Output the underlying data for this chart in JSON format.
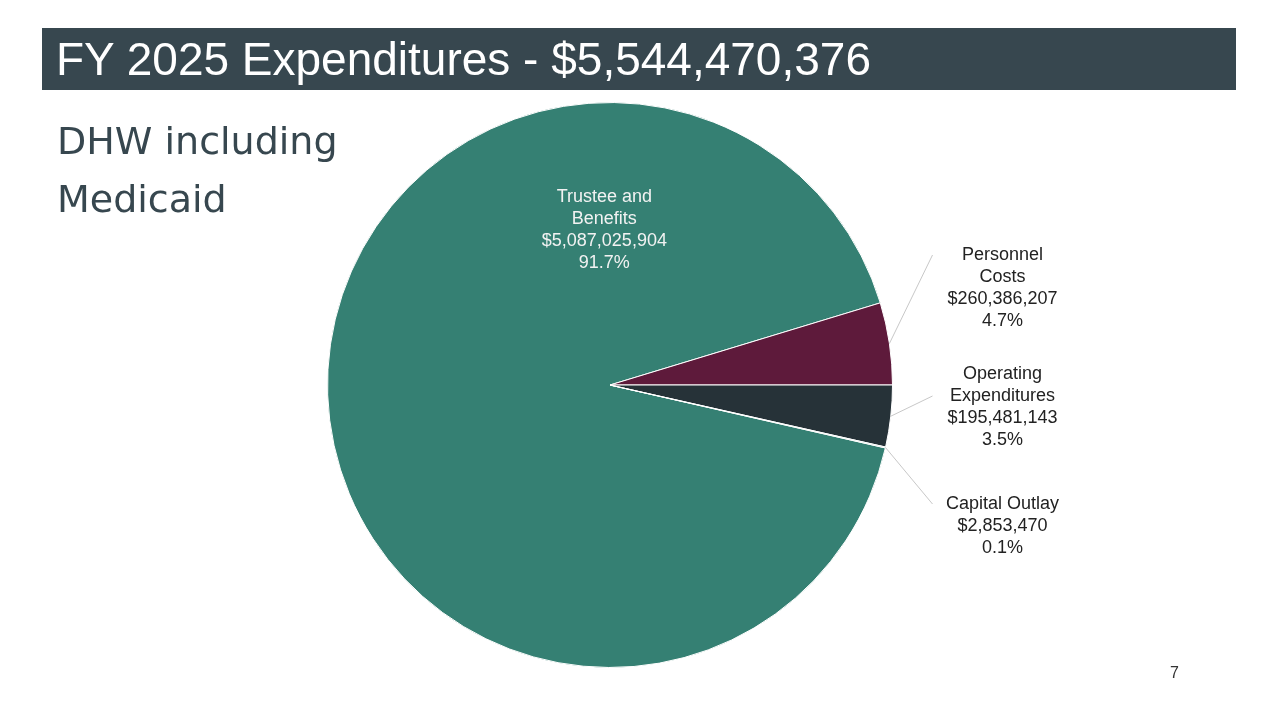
{
  "chart_data": {
    "type": "pie",
    "title": "FY 2025 Expenditures - $5,544,470,376",
    "subtitle": "DHW including Medicaid",
    "categories": [
      "Trustee and Benefits",
      "Personnel Costs",
      "Operating Expenditures",
      "Capital Outlay"
    ],
    "values": [
      5087025904,
      260386207,
      195481143,
      2853470
    ],
    "colors": [
      "#358073",
      "#5e1a3b",
      "#263238",
      "#9fb8b2"
    ],
    "value_labels": [
      "$5,087,025,904\n91.7%",
      "$260,386,207\n4.7%",
      "$195,481,143\n3.5%",
      "$2,853,470\n0.1%"
    ],
    "legend": false,
    "annotations": [
      "7"
    ]
  }
}
